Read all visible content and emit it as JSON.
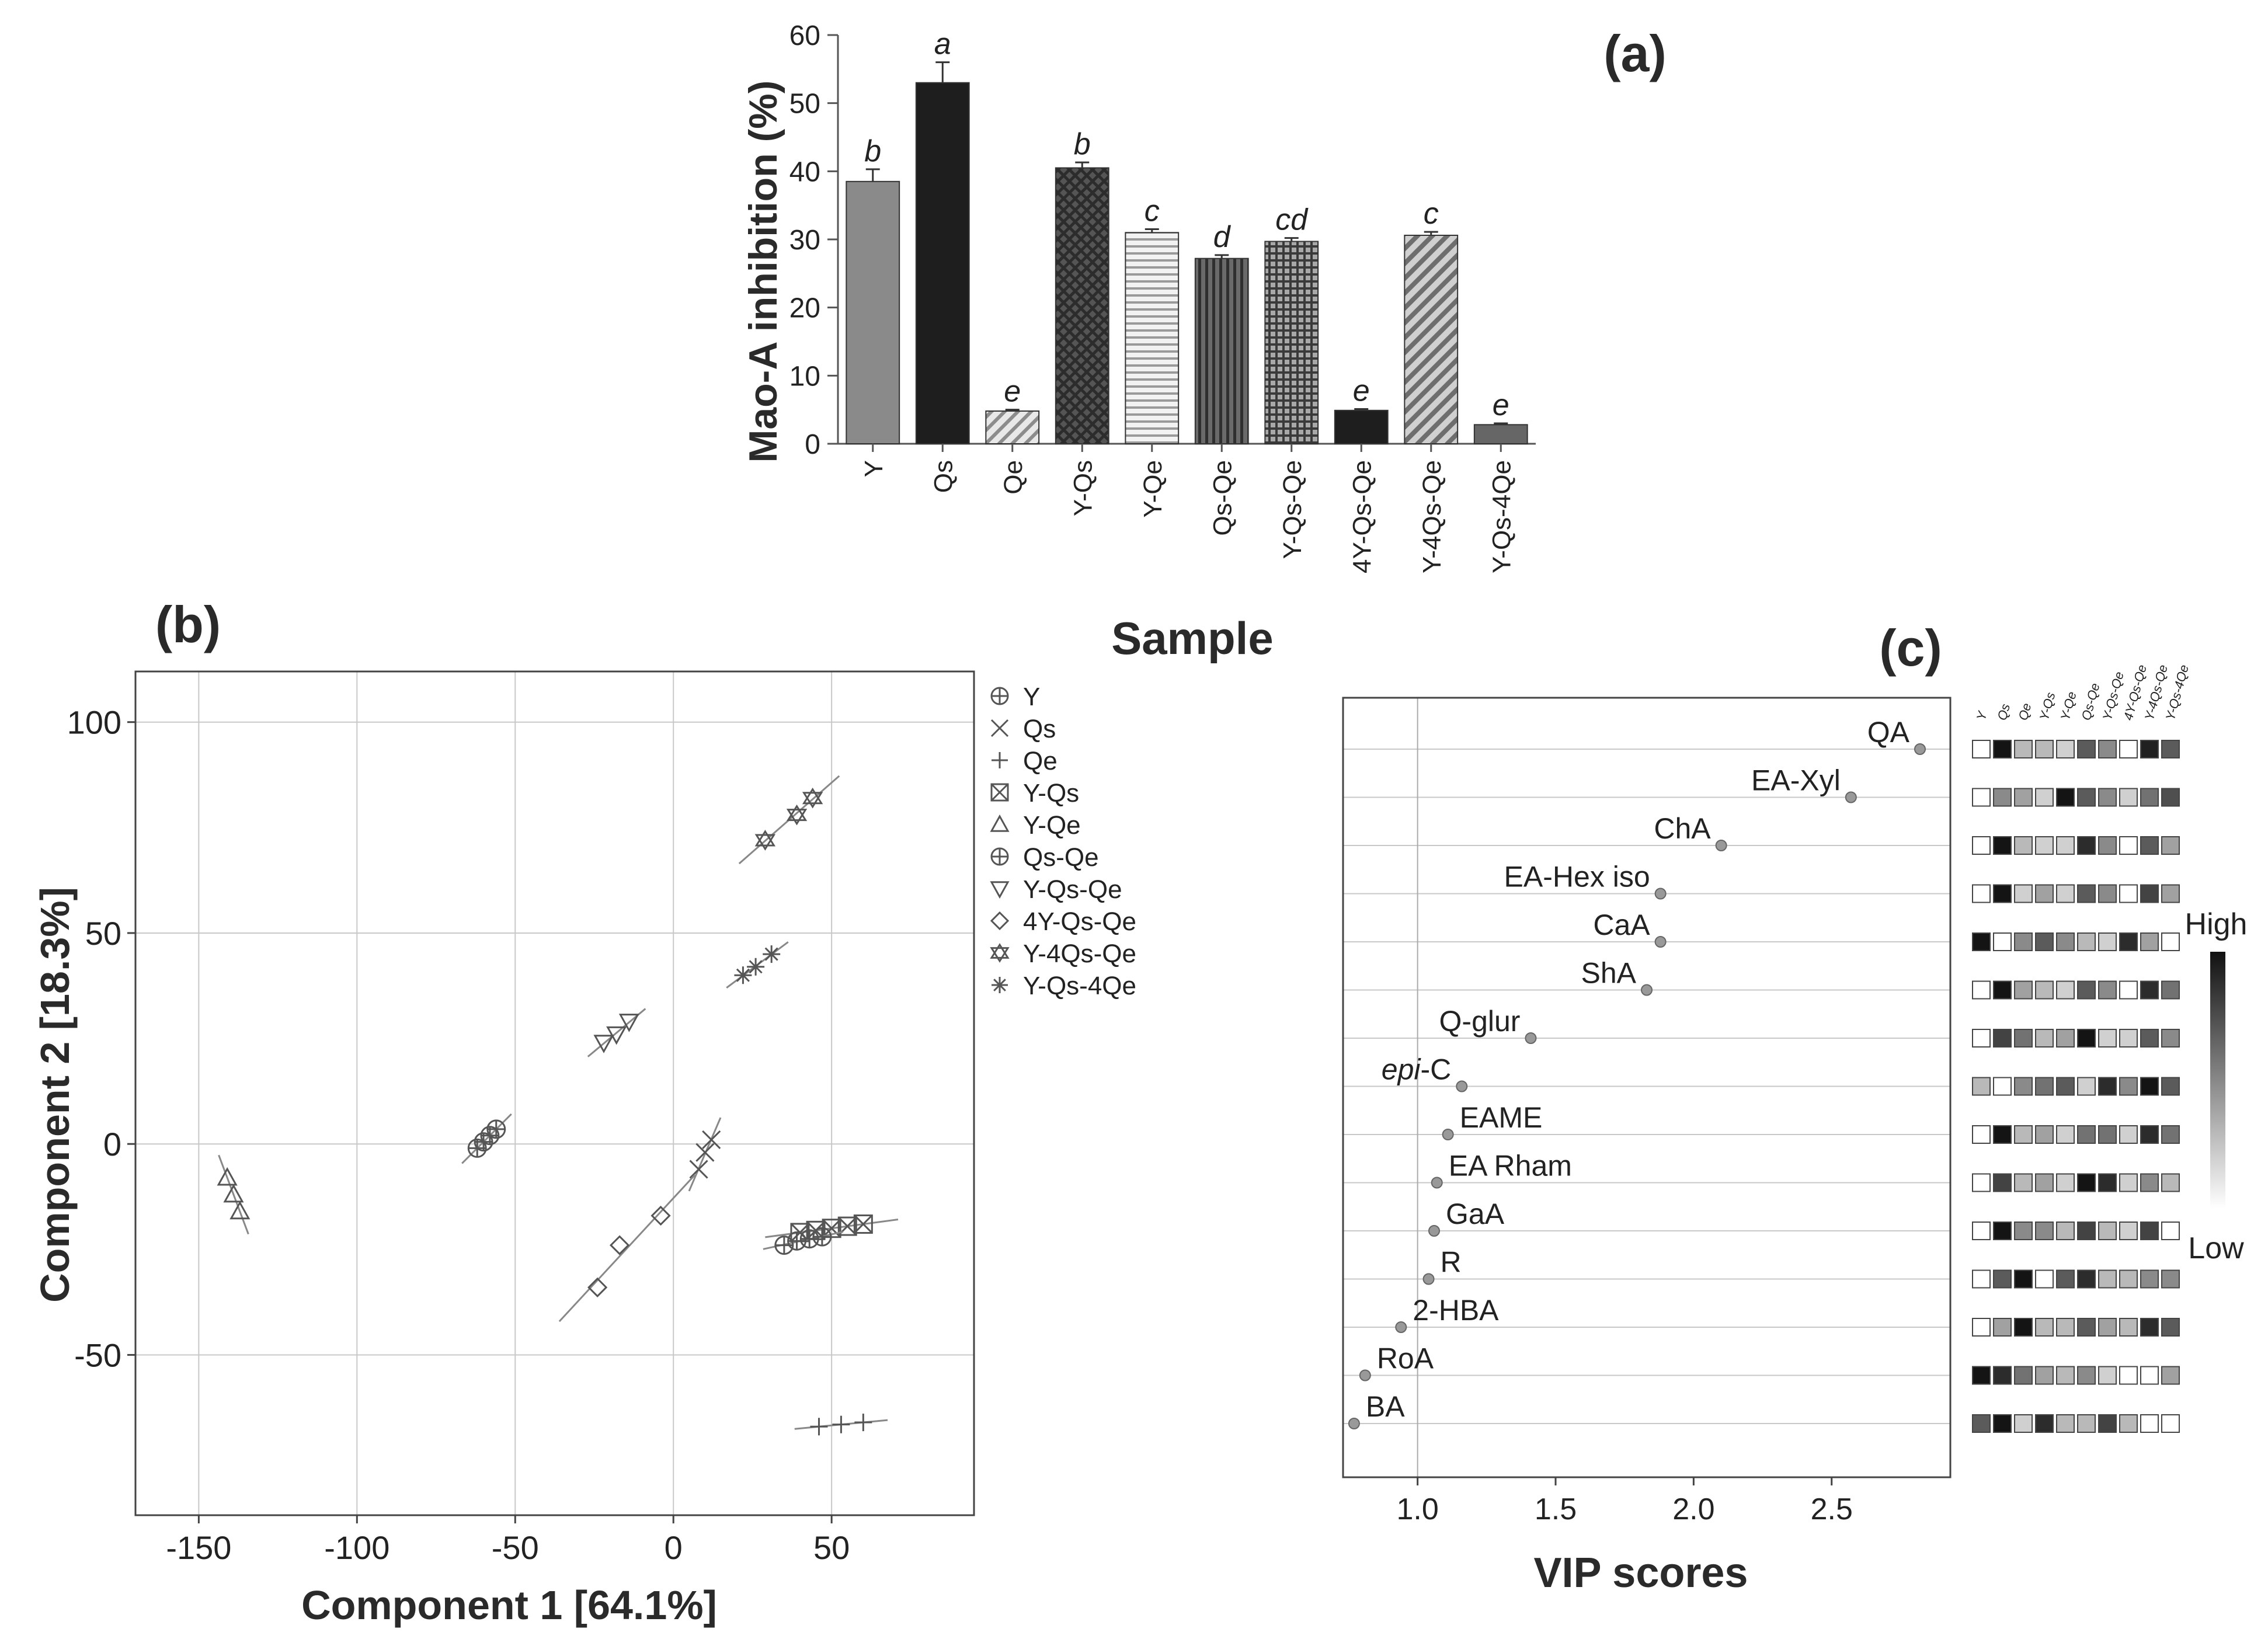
{
  "colors": {
    "ink": "#222222",
    "axis": "#555555",
    "grid": "#c8c8c8",
    "marker": "#777777"
  },
  "chart_data": [
    {
      "panel": "(a)",
      "type": "bar",
      "xlabel": "Sample",
      "ylabel": "Mao-A inhibition (%)",
      "ylim": [
        0,
        60
      ],
      "yticks": [
        0,
        10,
        20,
        30,
        40,
        50,
        60
      ],
      "categories": [
        "Y",
        "Qs",
        "Qe",
        "Y-Qs",
        "Y-Qe",
        "Qs-Qe",
        "Y-Qs-Qe",
        "4Y-Qs-Qe",
        "Y-4Qs-Qe",
        "Y-Qs-4Qe"
      ],
      "values": [
        38.5,
        53.0,
        4.8,
        40.5,
        31.0,
        27.2,
        29.7,
        4.9,
        30.6,
        2.8
      ],
      "errors": [
        1.8,
        3.0,
        0.2,
        0.8,
        0.5,
        0.5,
        0.5,
        0.2,
        0.5,
        0.2
      ],
      "letters": [
        "b",
        "a",
        "e",
        "b",
        "c",
        "d",
        "cd",
        "e",
        "c",
        "e"
      ],
      "fills": [
        "#8a8a8a",
        "#1e1e1e",
        "hatch-light",
        "crosshatch-dark",
        "hlines-light",
        "vlines-dark",
        "grid-dark",
        "#1e1e1e",
        "hatch-medium",
        "#666666"
      ]
    },
    {
      "panel": "(b)",
      "type": "scatter",
      "xlabel": "Component 1 [64.1%]",
      "ylabel": "Component 2 [18.3%]",
      "xlim": [
        -170,
        95
      ],
      "ylim": [
        -88,
        112
      ],
      "xticks": [
        -150,
        -100,
        -50,
        0,
        50
      ],
      "yticks": [
        -50,
        0,
        50,
        100
      ],
      "grid": true,
      "legend": "right-outside",
      "series": [
        {
          "name": "Y",
          "marker": "circle-plus",
          "x": [
            -62,
            -60,
            -58,
            -56
          ],
          "y": [
            -1,
            0.5,
            2,
            3.5
          ]
        },
        {
          "name": "Qs",
          "marker": "x",
          "x": [
            8,
            10,
            12
          ],
          "y": [
            -6,
            -2,
            1
          ]
        },
        {
          "name": "Qe",
          "marker": "plus",
          "x": [
            46,
            53,
            60
          ],
          "y": [
            -67,
            -66.5,
            -66
          ]
        },
        {
          "name": "Y-Qs",
          "marker": "square-x",
          "x": [
            40,
            45,
            50,
            55,
            60
          ],
          "y": [
            -21,
            -20.5,
            -20,
            -19.5,
            -19
          ]
        },
        {
          "name": "Y-Qe",
          "marker": "triangle-up",
          "x": [
            -141,
            -139,
            -137
          ],
          "y": [
            -8,
            -12,
            -16
          ]
        },
        {
          "name": "Qs-Qe",
          "marker": "circle-cross",
          "x": [
            35,
            39,
            43,
            47
          ],
          "y": [
            -24,
            -23,
            -22.5,
            -22
          ]
        },
        {
          "name": "Y-Qs-Qe",
          "marker": "triangle-down",
          "x": [
            -22,
            -18,
            -14
          ],
          "y": [
            24,
            26,
            29
          ]
        },
        {
          "name": "4Y-Qs-Qe",
          "marker": "diamond",
          "x": [
            -24,
            -17,
            -4
          ],
          "y": [
            -34,
            -24,
            -17
          ]
        },
        {
          "name": "Y-4Qs-Qe",
          "marker": "star-of-david",
          "x": [
            29,
            39,
            44
          ],
          "y": [
            72,
            78,
            82
          ]
        },
        {
          "name": "Y-Qs-4Qe",
          "marker": "asterisk",
          "x": [
            22,
            26,
            31
          ],
          "y": [
            40,
            42,
            45
          ]
        }
      ]
    },
    {
      "panel": "(c)",
      "type": "scatter",
      "xlabel": "VIP scores",
      "xlim": [
        0.73,
        2.93
      ],
      "xticks": [
        "1.0",
        "1.5",
        "2.0",
        "2.5"
      ],
      "reference_line": 1.0,
      "points": [
        {
          "label": "QA",
          "vip": 2.82
        },
        {
          "label": "EA-Xyl",
          "vip": 2.57
        },
        {
          "label": "ChA",
          "vip": 2.1
        },
        {
          "label": "EA-Hex iso",
          "vip": 1.88
        },
        {
          "label": "CaA",
          "vip": 1.88
        },
        {
          "label": "ShA",
          "vip": 1.83
        },
        {
          "label": "Q-glur",
          "vip": 1.41
        },
        {
          "label": "epi-C",
          "vip": 1.16
        },
        {
          "label": "EAME",
          "vip": 1.11
        },
        {
          "label": "EA Rham",
          "vip": 1.07
        },
        {
          "label": "GaA",
          "vip": 1.06
        },
        {
          "label": "R",
          "vip": 1.04
        },
        {
          "label": "2-HBA",
          "vip": 0.94
        },
        {
          "label": "RoA",
          "vip": 0.81
        },
        {
          "label": "BA",
          "vip": 0.77
        }
      ]
    },
    {
      "panel": "(c) heatmap",
      "type": "heatmap",
      "columns": [
        "Y",
        "Qs",
        "Qe",
        "Y-Qs",
        "Y-Qe",
        "Qs-Qe",
        "Y-Qs-Qe",
        "4Y-Qs-Qe",
        "Y-4Qs-Qe",
        "Y-Qs-4Qe"
      ],
      "rows": [
        "QA",
        "EA-Xyl",
        "ChA",
        "EA-Hex iso",
        "CaA",
        "ShA",
        "Q-glur",
        "epi-C",
        "EAME",
        "EA Rham",
        "GaA",
        "R",
        "2-HBA",
        "RoA",
        "BA"
      ],
      "scale_max_label": "High",
      "scale_min_label": "Low",
      "values": [
        [
          0.0,
          1.0,
          0.3,
          0.3,
          0.2,
          0.7,
          0.5,
          0.0,
          0.95,
          0.7
        ],
        [
          0.0,
          0.5,
          0.4,
          0.2,
          1.0,
          0.7,
          0.5,
          0.2,
          0.6,
          0.75
        ],
        [
          0.0,
          1.0,
          0.3,
          0.2,
          0.2,
          0.9,
          0.5,
          0.0,
          0.7,
          0.4
        ],
        [
          0.0,
          1.0,
          0.2,
          0.4,
          0.2,
          0.7,
          0.5,
          0.0,
          0.8,
          0.4
        ],
        [
          1.0,
          0.0,
          0.5,
          0.7,
          0.5,
          0.3,
          0.2,
          0.9,
          0.4,
          0.0
        ],
        [
          0.0,
          1.0,
          0.4,
          0.3,
          0.2,
          0.7,
          0.5,
          0.0,
          0.9,
          0.6
        ],
        [
          0.0,
          0.8,
          0.6,
          0.3,
          0.4,
          1.0,
          0.2,
          0.2,
          0.7,
          0.5
        ],
        [
          0.3,
          0.0,
          0.5,
          0.6,
          0.7,
          0.2,
          0.9,
          0.5,
          1.0,
          0.7
        ],
        [
          0.0,
          1.0,
          0.3,
          0.4,
          0.2,
          0.6,
          0.6,
          0.2,
          0.9,
          0.6
        ],
        [
          0.0,
          0.8,
          0.3,
          0.4,
          0.2,
          1.0,
          0.9,
          0.2,
          0.5,
          0.3
        ],
        [
          0.0,
          1.0,
          0.5,
          0.5,
          0.3,
          0.8,
          0.3,
          0.2,
          0.8,
          0.0
        ],
        [
          0.0,
          0.7,
          1.0,
          0.0,
          0.7,
          0.9,
          0.3,
          0.3,
          0.5,
          0.5
        ],
        [
          0.0,
          0.4,
          1.0,
          0.3,
          0.3,
          0.7,
          0.4,
          0.3,
          0.9,
          0.7
        ],
        [
          1.0,
          0.9,
          0.6,
          0.4,
          0.3,
          0.5,
          0.2,
          0.0,
          0.0,
          0.4
        ],
        [
          0.7,
          1.0,
          0.2,
          0.9,
          0.3,
          0.3,
          0.8,
          0.3,
          0.0,
          0.0
        ]
      ]
    }
  ]
}
